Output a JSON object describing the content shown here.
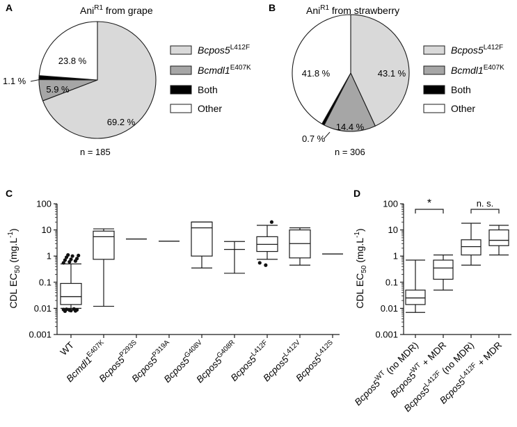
{
  "colors": {
    "bcpos5": "#d9d9d9",
    "bcmdl1": "#a6a6a6",
    "both": "#000000",
    "other": "#ffffff",
    "stroke": "#1a1a1a"
  },
  "legend": {
    "bcpos5": {
      "label": "Bcpos5",
      "sup": "L412F"
    },
    "bcmdl1": {
      "label": "Bcmdl1",
      "sup": "E407K"
    },
    "both": {
      "label": "Both"
    },
    "other": {
      "label": "Other"
    }
  },
  "chart_data": [
    {
      "panel": "A",
      "type": "pie",
      "title": {
        "main": "Ani",
        "sup": "R1",
        "rest": " from grape"
      },
      "n_label": "n = 185",
      "slices": [
        {
          "key": "bcpos5",
          "value": 69.2,
          "label": "69.2 %"
        },
        {
          "key": "bcmdl1",
          "value": 5.9,
          "label": "5.9 %"
        },
        {
          "key": "both",
          "value": 1.1,
          "label": "1.1 %"
        },
        {
          "key": "other",
          "value": 23.8,
          "label": "23.8 %"
        }
      ]
    },
    {
      "panel": "B",
      "type": "pie",
      "title": {
        "main": "Ani",
        "sup": "R1",
        "rest": " from strawberry"
      },
      "n_label": "n = 306",
      "slices": [
        {
          "key": "bcpos5",
          "value": 43.1,
          "label": "43.1 %"
        },
        {
          "key": "bcmdl1",
          "value": 14.4,
          "label": "14.4 %"
        },
        {
          "key": "both",
          "value": 0.7,
          "label": "0.7 %"
        },
        {
          "key": "other",
          "value": 41.8,
          "label": "41.8 %"
        }
      ]
    },
    {
      "panel": "C",
      "type": "boxplot",
      "yscale": "log",
      "ylim": [
        0.001,
        100
      ],
      "yticks": [
        "0.001",
        "0.01",
        "0.1",
        "1",
        "10",
        "100"
      ],
      "ylabel": {
        "main": "CDL EC",
        "sub": "50",
        "rest": " (mg.L",
        "sup": "-1",
        "end": ")"
      },
      "groups": [
        {
          "name": "WT",
          "italic": false,
          "sup": "",
          "whisk_low": 0.01,
          "q1": 0.014,
          "median": 0.028,
          "q3": 0.09,
          "whisk_high": 0.5,
          "outliers": [
            0.55,
            0.6,
            0.65,
            0.7,
            0.75,
            0.8,
            0.9,
            1.0,
            1.05,
            1.1,
            0.0095,
            0.009,
            0.0085,
            0.008,
            0.0078,
            0.0082,
            0.0088,
            0.0092
          ]
        },
        {
          "name": "Bcmdl1",
          "italic": true,
          "sup": "E407K",
          "whisk_low": 0.012,
          "q1": 0.75,
          "median": 5.5,
          "q3": 9,
          "whisk_high": 11,
          "outliers": []
        },
        {
          "name": "Bcpos5",
          "italic": true,
          "sup": "P293S",
          "single": 4.5,
          "outliers": []
        },
        {
          "name": "Bcpos5",
          "italic": true,
          "sup": "P319A",
          "single": 3.7,
          "outliers": []
        },
        {
          "name": "Bcpos5",
          "italic": true,
          "sup": "G408V",
          "whisk_low": 0.35,
          "q1": 1.0,
          "median": 12,
          "q3": 20,
          "whisk_high": 20,
          "outliers": []
        },
        {
          "name": "Bcpos5",
          "italic": true,
          "sup": "G408R",
          "whisk_low": 0.22,
          "q1": 1.8,
          "median": 1.8,
          "q3": 1.8,
          "whisk_high": 3.6,
          "outliers": []
        },
        {
          "name": "Bcpos5",
          "italic": true,
          "sup": "L412F",
          "whisk_low": 0.75,
          "q1": 1.5,
          "median": 2.8,
          "q3": 5.5,
          "whisk_high": 15,
          "outliers": [
            0.55,
            0.45,
            20
          ]
        },
        {
          "name": "Bcpos5",
          "italic": true,
          "sup": "L412V",
          "whisk_low": 0.45,
          "q1": 0.85,
          "median": 3.0,
          "q3": 10,
          "whisk_high": 12,
          "outliers": []
        },
        {
          "name": "Bcpos5",
          "italic": true,
          "sup": "L412S",
          "single": 1.2,
          "outliers": []
        }
      ]
    },
    {
      "panel": "D",
      "type": "boxplot",
      "yscale": "log",
      "ylim": [
        0.001,
        100
      ],
      "yticks": [
        "0.001",
        "0.01",
        "0.1",
        "1",
        "10",
        "100"
      ],
      "ylabel": {
        "main": "CDL EC",
        "sub": "50",
        "rest": " (mg.L",
        "sup": "-1",
        "end": ")"
      },
      "groups": [
        {
          "name": "Bcpos5",
          "italic": true,
          "sup": "WT",
          "suffix": " (no MDR)",
          "whisk_low": 0.007,
          "q1": 0.014,
          "median": 0.025,
          "q3": 0.05,
          "whisk_high": 0.7,
          "outliers": []
        },
        {
          "name": "Bcpos5",
          "italic": true,
          "sup": "WT",
          "suffix": " + MDR",
          "whisk_low": 0.05,
          "q1": 0.13,
          "median": 0.35,
          "q3": 0.7,
          "whisk_high": 1.1,
          "outliers": []
        },
        {
          "name": "Bcpos5",
          "italic": true,
          "sup": "L412F",
          "suffix": " (no MDR)",
          "whisk_low": 0.45,
          "q1": 1.1,
          "median": 2.3,
          "q3": 4.2,
          "whisk_high": 18,
          "outliers": []
        },
        {
          "name": "Bcpos5",
          "italic": true,
          "sup": "L412F",
          "suffix": " + MDR",
          "whisk_low": 1.1,
          "q1": 2.5,
          "median": 4.0,
          "q3": 10,
          "whisk_high": 15,
          "outliers": []
        }
      ],
      "comparisons": [
        {
          "from": 0,
          "to": 1,
          "label": "*"
        },
        {
          "from": 2,
          "to": 3,
          "label": "n. s."
        }
      ]
    }
  ],
  "panel_letters": [
    "A",
    "B",
    "C",
    "D"
  ]
}
